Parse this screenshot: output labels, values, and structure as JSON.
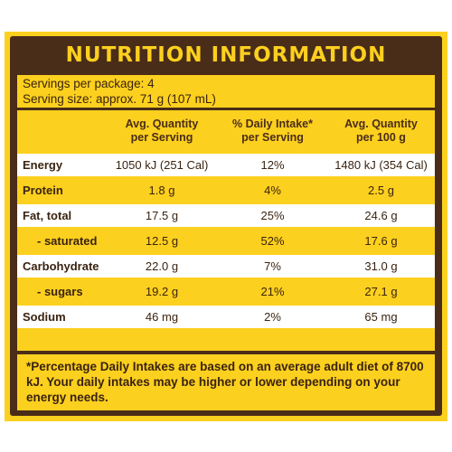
{
  "title": "NUTRITION INFORMATION",
  "servings_per_package": "Servings per package: 4",
  "serving_size": "Serving size: approx. 71 g (107 mL)",
  "columns": {
    "avg_per_serving_line1": "Avg. Quantity",
    "avg_per_serving_line2": "per Serving",
    "daily_intake_line1": "% Daily Intake*",
    "daily_intake_line2": "per Serving",
    "avg_per_100g_line1": "Avg. Quantity",
    "avg_per_100g_line2": "per 100 g"
  },
  "rows": [
    {
      "name": "Energy",
      "per_serving": "1050 kJ (251 Cal)",
      "daily_intake": "12%",
      "per_100g": "1480 kJ (354 Cal)"
    },
    {
      "name": "Protein",
      "per_serving": "1.8 g",
      "daily_intake": "4%",
      "per_100g": "2.5 g"
    },
    {
      "name": "Fat, total",
      "per_serving": "17.5 g",
      "daily_intake": "25%",
      "per_100g": "24.6 g"
    },
    {
      "name": "- saturated",
      "per_serving": "12.5 g",
      "daily_intake": "52%",
      "per_100g": "17.6 g"
    },
    {
      "name": "Carbohydrate",
      "per_serving": "22.0 g",
      "daily_intake": "7%",
      "per_100g": "31.0 g"
    },
    {
      "name": "- sugars",
      "per_serving": "19.2 g",
      "daily_intake": "21%",
      "per_100g": "27.1 g"
    },
    {
      "name": "Sodium",
      "per_serving": "46 mg",
      "daily_intake": "2%",
      "per_100g": "65 mg"
    }
  ],
  "footnote": "*Percentage Daily Intakes are based on an average adult diet of 8700 kJ. Your daily intakes may be higher or lower depending on your energy needs.",
  "colors": {
    "panel_yellow": "#fcd01e",
    "frame_brown": "#4a2d18",
    "row_white": "#ffffff"
  }
}
